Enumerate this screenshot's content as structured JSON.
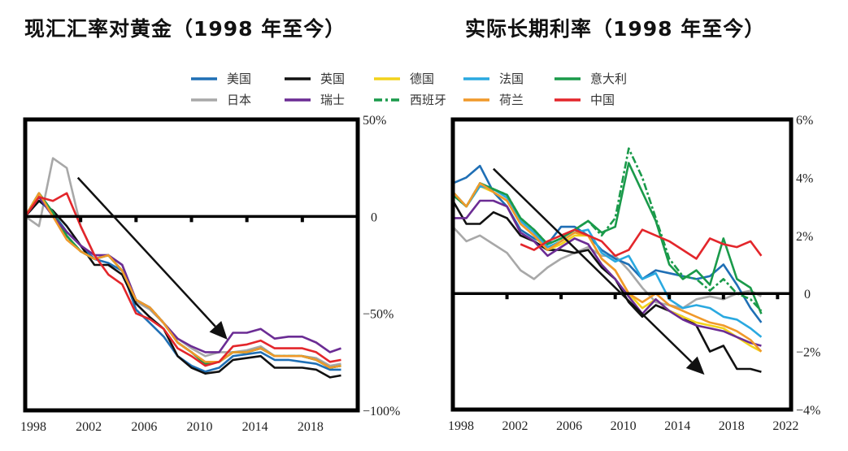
{
  "legend": [
    {
      "name": "美国",
      "color": "#1f6fb5",
      "dash": false
    },
    {
      "name": "英国",
      "color": "#111111",
      "dash": false
    },
    {
      "name": "德国",
      "color": "#f2d21b",
      "dash": false
    },
    {
      "name": "法国",
      "color": "#2aa9e0",
      "dash": false
    },
    {
      "name": "意大利",
      "color": "#1a9a4a",
      "dash": false
    },
    {
      "name": "日本",
      "color": "#a8a8a8",
      "dash": false
    },
    {
      "name": "瑞士",
      "color": "#6b2c94",
      "dash": false
    },
    {
      "name": "西班牙",
      "color": "#1a9a4a",
      "dash": true
    },
    {
      "name": "荷兰",
      "color": "#f0992a",
      "dash": false
    },
    {
      "name": "中国",
      "color": "#e3262b",
      "dash": false
    }
  ],
  "chart_data": [
    {
      "type": "line",
      "title": "现汇汇率对黄金（1998 年至今）",
      "xlabel": "",
      "ylabel": "",
      "xlim": [
        1998,
        2022
      ],
      "ylim": [
        -100,
        50
      ],
      "x_ticks": [
        {
          "v": 1998,
          "label": "1998"
        },
        {
          "v": 2002,
          "label": "2002"
        },
        {
          "v": 2006,
          "label": "2006"
        },
        {
          "v": 2010,
          "label": "2010"
        },
        {
          "v": 2014,
          "label": "2014"
        },
        {
          "v": 2018,
          "label": "2018"
        }
      ],
      "y_ticks": [
        {
          "v": 50,
          "label": "50%"
        },
        {
          "v": 0,
          "label": "0"
        },
        {
          "v": -50,
          "label": "−50%"
        },
        {
          "v": -100,
          "label": "−100%"
        }
      ],
      "y_axis_side": "right",
      "x": [
        1998,
        1999,
        2000,
        2001,
        2002,
        2003,
        2004,
        2005,
        2006,
        2007,
        2008,
        2009,
        2010,
        2011,
        2012,
        2013,
        2014,
        2015,
        2016,
        2017,
        2018,
        2019,
        2020,
        2020.8
      ],
      "series": [
        {
          "name": "日本",
          "values": [
            0,
            -5,
            30,
            25,
            -5,
            -20,
            -20,
            -25,
            -44,
            -48,
            -55,
            -63,
            -68,
            -72,
            -70,
            -70,
            -69,
            -67,
            -72,
            -72,
            -72,
            -73,
            -77,
            -76
          ]
        },
        {
          "name": "美国",
          "values": [
            0,
            8,
            2,
            -8,
            -15,
            -22,
            -24,
            -28,
            -48,
            -55,
            -62,
            -72,
            -77,
            -80,
            -78,
            -72,
            -71,
            -70,
            -74,
            -74,
            -75,
            -76,
            -79,
            -79
          ]
        },
        {
          "name": "英国",
          "values": [
            0,
            8,
            3,
            -5,
            -15,
            -25,
            -25,
            -30,
            -45,
            -52,
            -58,
            -72,
            -78,
            -81,
            -80,
            -74,
            -73,
            -72,
            -78,
            -78,
            -78,
            -79,
            -83,
            -82
          ]
        },
        {
          "name": "德国",
          "values": [
            0,
            12,
            2,
            -10,
            -18,
            -22,
            -20,
            -28,
            -43,
            -47,
            -55,
            -65,
            -70,
            -76,
            -75,
            -70,
            -70,
            -68,
            -72,
            -72,
            -72,
            -74,
            -78,
            -77
          ]
        },
        {
          "name": "法国",
          "values": [
            0,
            12,
            2,
            -10,
            -18,
            -22,
            -20,
            -28,
            -43,
            -47,
            -55,
            -65,
            -70,
            -76,
            -75,
            -70,
            -70,
            -68,
            -72,
            -72,
            -72,
            -74,
            -78,
            -77
          ]
        },
        {
          "name": "意大利",
          "values": [
            0,
            12,
            2,
            -10,
            -18,
            -22,
            -20,
            -28,
            -43,
            -47,
            -55,
            -65,
            -70,
            -76,
            -75,
            -70,
            -70,
            -68,
            -72,
            -72,
            -72,
            -74,
            -78,
            -77
          ]
        },
        {
          "name": "西班牙",
          "values": [
            0,
            12,
            2,
            -10,
            -18,
            -22,
            -20,
            -28,
            -43,
            -47,
            -55,
            -65,
            -70,
            -76,
            -75,
            -70,
            -70,
            -68,
            -72,
            -72,
            -72,
            -74,
            -78,
            -77
          ]
        },
        {
          "name": "瑞士",
          "values": [
            0,
            10,
            0,
            -8,
            -15,
            -20,
            -20,
            -25,
            -43,
            -47,
            -55,
            -63,
            -67,
            -70,
            -70,
            -60,
            -60,
            -58,
            -63,
            -62,
            -62,
            -65,
            -70,
            -68
          ]
        },
        {
          "name": "荷兰",
          "values": [
            0,
            12,
            0,
            -12,
            -18,
            -22,
            -20,
            -28,
            -43,
            -47,
            -55,
            -65,
            -70,
            -75,
            -75,
            -70,
            -70,
            -68,
            -72,
            -72,
            -72,
            -74,
            -78,
            -77
          ]
        },
        {
          "name": "中国",
          "values": [
            0,
            10,
            8,
            12,
            -5,
            -20,
            -30,
            -35,
            -50,
            -53,
            -58,
            -68,
            -72,
            -77,
            -75,
            -67,
            -66,
            -64,
            -68,
            -68,
            -68,
            -70,
            -75,
            -74
          ]
        }
      ],
      "annotations": [
        {
          "type": "arrow",
          "from": [
            2001.8,
            20
          ],
          "to": [
            2012.6,
            -63.5
          ]
        }
      ]
    },
    {
      "type": "line",
      "title": "实际长期利率（1998 年至今）",
      "xlabel": "",
      "ylabel": "",
      "xlim": [
        1998,
        2023
      ],
      "ylim": [
        -4,
        6
      ],
      "x_ticks": [
        {
          "v": 1998,
          "label": "1998"
        },
        {
          "v": 2002,
          "label": "2002"
        },
        {
          "v": 2006,
          "label": "2006"
        },
        {
          "v": 2010,
          "label": "2010"
        },
        {
          "v": 2014,
          "label": "2014"
        },
        {
          "v": 2018,
          "label": "2018"
        },
        {
          "v": 2022,
          "label": "2022"
        }
      ],
      "y_ticks": [
        {
          "v": 6,
          "label": "6%"
        },
        {
          "v": 4,
          "label": "4%"
        },
        {
          "v": 2,
          "label": "2%"
        },
        {
          "v": 0,
          "label": "0"
        },
        {
          "v": -2,
          "label": "−2%"
        },
        {
          "v": -4,
          "label": "−4%"
        }
      ],
      "y_axis_side": "right",
      "x": [
        1998,
        1999,
        2000,
        2001,
        2002,
        2003,
        2004,
        2005,
        2006,
        2007,
        2008,
        2009,
        2010,
        2011,
        2012,
        2013,
        2014,
        2015,
        2016,
        2017,
        2018,
        2019,
        2020,
        2020.8
      ],
      "series": [
        {
          "name": "日本",
          "values": [
            2.3,
            1.8,
            2.0,
            1.7,
            1.4,
            0.8,
            0.5,
            0.9,
            1.2,
            1.4,
            1.6,
            1.3,
            1.3,
            0.8,
            0.2,
            -0.3,
            -0.4,
            -0.5,
            -0.2,
            -0.1,
            -0.2,
            0.0,
            0.1,
            -0.1
          ]
        },
        {
          "name": "美国",
          "values": [
            3.8,
            4.0,
            4.4,
            3.5,
            3.0,
            2.2,
            1.9,
            1.7,
            2.3,
            2.3,
            2.0,
            1.5,
            1.2,
            1.0,
            0.5,
            0.8,
            0.7,
            0.6,
            0.5,
            0.6,
            1.0,
            0.3,
            -0.5,
            -1.0
          ]
        },
        {
          "name": "英国",
          "values": [
            3.2,
            2.4,
            2.4,
            2.8,
            2.6,
            2.0,
            1.8,
            1.5,
            1.5,
            1.4,
            1.5,
            0.9,
            0.5,
            -0.3,
            -0.8,
            -0.4,
            -0.6,
            -0.8,
            -1.1,
            -2.0,
            -1.8,
            -2.6,
            -2.6,
            -2.7
          ]
        },
        {
          "name": "德国",
          "values": [
            3.5,
            3.0,
            3.7,
            3.5,
            3.2,
            2.4,
            2.0,
            1.5,
            1.7,
            2.0,
            2.0,
            1.2,
            0.8,
            0.0,
            -0.5,
            -0.2,
            -0.6,
            -0.8,
            -1.0,
            -1.1,
            -1.2,
            -1.5,
            -1.8,
            -2.0
          ]
        },
        {
          "name": "法国",
          "values": [
            3.5,
            3.0,
            3.7,
            3.6,
            3.3,
            2.5,
            2.1,
            1.6,
            1.8,
            2.1,
            2.2,
            1.4,
            1.1,
            1.3,
            0.5,
            0.7,
            -0.2,
            -0.5,
            -0.4,
            -0.5,
            -0.8,
            -0.9,
            -1.2,
            -1.5
          ]
        },
        {
          "name": "西班牙",
          "values": [
            3.4,
            3.0,
            3.8,
            3.6,
            3.4,
            2.6,
            2.2,
            1.7,
            1.9,
            2.2,
            2.5,
            2.0,
            2.6,
            5.0,
            4.0,
            2.6,
            1.2,
            0.6,
            0.5,
            0.1,
            0.5,
            0.0,
            -0.2,
            -0.6
          ]
        },
        {
          "name": "意大利",
          "values": [
            3.4,
            3.0,
            3.8,
            3.6,
            3.4,
            2.6,
            2.2,
            1.7,
            1.9,
            2.2,
            2.5,
            2.1,
            2.3,
            4.5,
            3.5,
            2.5,
            1.0,
            0.5,
            0.8,
            0.3,
            1.9,
            0.5,
            0.2,
            -0.7
          ]
        },
        {
          "name": "瑞士",
          "values": [
            2.6,
            2.6,
            3.2,
            3.2,
            3.0,
            2.1,
            1.8,
            1.3,
            1.6,
            1.9,
            1.7,
            1.0,
            0.5,
            -0.1,
            -0.7,
            -0.2,
            -0.6,
            -0.9,
            -1.1,
            -1.2,
            -1.3,
            -1.5,
            -1.7,
            -1.8
          ]
        },
        {
          "name": "荷兰",
          "values": [
            3.5,
            3.0,
            3.8,
            3.5,
            3.2,
            2.4,
            2.0,
            1.5,
            1.8,
            2.1,
            2.0,
            1.2,
            0.8,
            0.0,
            -0.3,
            0.0,
            -0.4,
            -0.6,
            -0.8,
            -1.0,
            -1.1,
            -1.3,
            -1.6,
            -2.0
          ]
        },
        {
          "name": "中国",
          "values": [
            null,
            null,
            null,
            null,
            null,
            1.7,
            1.5,
            1.8,
            2.0,
            2.2,
            2.0,
            1.8,
            1.3,
            1.5,
            2.2,
            2.0,
            1.8,
            1.5,
            1.2,
            1.9,
            1.7,
            1.6,
            1.8,
            1.3
          ]
        }
      ],
      "annotations": [
        {
          "type": "arrow",
          "from": [
            2001,
            4.3
          ],
          "to": [
            2016.6,
            -2.8
          ]
        }
      ]
    }
  ]
}
